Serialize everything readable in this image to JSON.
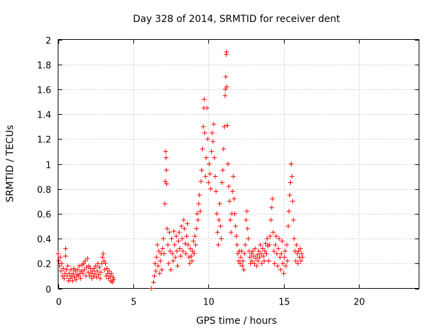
{
  "chart_data": {
    "type": "scatter",
    "title": "Day 328 of 2014, SRMTID for receiver dent",
    "xlabel": "GPS time / hours",
    "ylabel": "SRMTID / TECUs",
    "xlim": [
      0,
      24
    ],
    "ylim": [
      0,
      2
    ],
    "xticks": [
      0,
      5,
      10,
      15,
      20
    ],
    "yticks": [
      0,
      0.2,
      0.4,
      0.6,
      0.8,
      1,
      1.2,
      1.4,
      1.6,
      1.8,
      2
    ],
    "grid": true,
    "marker": "+",
    "color": "#ff0000",
    "series": [
      {
        "name": "SRMTID",
        "points": [
          [
            0.0,
            0.28
          ],
          [
            0.05,
            0.22
          ],
          [
            0.1,
            0.18
          ],
          [
            0.15,
            0.25
          ],
          [
            0.2,
            0.14
          ],
          [
            0.25,
            0.2
          ],
          [
            0.3,
            0.1
          ],
          [
            0.35,
            0.16
          ],
          [
            0.4,
            0.08
          ],
          [
            0.45,
            0.12
          ],
          [
            0.5,
            0.32
          ],
          [
            0.5,
            0.26
          ],
          [
            0.55,
            0.15
          ],
          [
            0.6,
            0.1
          ],
          [
            0.65,
            0.18
          ],
          [
            0.7,
            0.06
          ],
          [
            0.75,
            0.12
          ],
          [
            0.8,
            0.08
          ],
          [
            0.85,
            0.15
          ],
          [
            0.9,
            0.1
          ],
          [
            0.95,
            0.06
          ],
          [
            1.0,
            0.12
          ],
          [
            1.05,
            0.16
          ],
          [
            1.1,
            0.09
          ],
          [
            1.15,
            0.14
          ],
          [
            1.2,
            0.07
          ],
          [
            1.25,
            0.11
          ],
          [
            1.3,
            0.15
          ],
          [
            1.35,
            0.1
          ],
          [
            1.4,
            0.18
          ],
          [
            1.45,
            0.12
          ],
          [
            1.5,
            0.08
          ],
          [
            1.55,
            0.14
          ],
          [
            1.6,
            0.19
          ],
          [
            1.65,
            0.12
          ],
          [
            1.7,
            0.2
          ],
          [
            1.75,
            0.15
          ],
          [
            1.8,
            0.22
          ],
          [
            1.85,
            0.1
          ],
          [
            1.9,
            0.17
          ],
          [
            1.95,
            0.24
          ],
          [
            2.0,
            0.13
          ],
          [
            2.05,
            0.18
          ],
          [
            2.1,
            0.1
          ],
          [
            2.15,
            0.16
          ],
          [
            2.2,
            0.12
          ],
          [
            2.25,
            0.08
          ],
          [
            2.3,
            0.14
          ],
          [
            2.35,
            0.1
          ],
          [
            2.4,
            0.16
          ],
          [
            2.45,
            0.12
          ],
          [
            2.5,
            0.18
          ],
          [
            2.55,
            0.09
          ],
          [
            2.6,
            0.14
          ],
          [
            2.65,
            0.2
          ],
          [
            2.7,
            0.11
          ],
          [
            2.75,
            0.17
          ],
          [
            2.8,
            0.08
          ],
          [
            2.85,
            0.13
          ],
          [
            2.9,
            0.2
          ],
          [
            2.95,
            0.25
          ],
          [
            3.0,
            0.28
          ],
          [
            3.05,
            0.22
          ],
          [
            3.1,
            0.15
          ],
          [
            3.15,
            0.2
          ],
          [
            3.2,
            0.1
          ],
          [
            3.25,
            0.16
          ],
          [
            3.3,
            0.12
          ],
          [
            3.35,
            0.08
          ],
          [
            3.4,
            0.14
          ],
          [
            3.45,
            0.1
          ],
          [
            3.5,
            0.06
          ],
          [
            3.55,
            0.12
          ],
          [
            3.6,
            0.05
          ],
          [
            3.65,
            0.09
          ],
          [
            3.7,
            0.07
          ],
          [
            6.2,
            0.0
          ],
          [
            6.35,
            0.05
          ],
          [
            6.4,
            0.1
          ],
          [
            6.45,
            0.2
          ],
          [
            6.5,
            0.14
          ],
          [
            6.55,
            0.25
          ],
          [
            6.6,
            0.35
          ],
          [
            6.65,
            0.18
          ],
          [
            6.7,
            0.3
          ],
          [
            6.75,
            0.12
          ],
          [
            6.8,
            0.22
          ],
          [
            6.85,
            0.28
          ],
          [
            6.9,
            0.15
          ],
          [
            6.95,
            0.32
          ],
          [
            7.0,
            0.4
          ],
          [
            7.05,
            0.28
          ],
          [
            7.1,
            0.68
          ],
          [
            7.12,
            0.86
          ],
          [
            7.15,
            1.1
          ],
          [
            7.18,
            1.05
          ],
          [
            7.2,
            0.95
          ],
          [
            7.22,
            0.84
          ],
          [
            7.25,
            0.48
          ],
          [
            7.3,
            0.35
          ],
          [
            7.35,
            0.2
          ],
          [
            7.4,
            0.45
          ],
          [
            7.45,
            0.3
          ],
          [
            7.5,
            0.15
          ],
          [
            7.55,
            0.4
          ],
          [
            7.6,
            0.28
          ],
          [
            7.65,
            0.22
          ],
          [
            7.7,
            0.46
          ],
          [
            7.75,
            0.35
          ],
          [
            7.8,
            0.25
          ],
          [
            7.85,
            0.42
          ],
          [
            7.9,
            0.3
          ],
          [
            7.95,
            0.18
          ],
          [
            8.0,
            0.38
          ],
          [
            8.05,
            0.45
          ],
          [
            8.1,
            0.32
          ],
          [
            8.15,
            0.26
          ],
          [
            8.2,
            0.5
          ],
          [
            8.25,
            0.4
          ],
          [
            8.3,
            0.3
          ],
          [
            8.35,
            0.55
          ],
          [
            8.4,
            0.48
          ],
          [
            8.45,
            0.36
          ],
          [
            8.5,
            0.28
          ],
          [
            8.55,
            0.42
          ],
          [
            8.6,
            0.52
          ],
          [
            8.65,
            0.35
          ],
          [
            8.7,
            0.25
          ],
          [
            8.75,
            0.2
          ],
          [
            8.8,
            0.32
          ],
          [
            8.85,
            0.26
          ],
          [
            8.9,
            0.22
          ],
          [
            8.95,
            0.3
          ],
          [
            9.0,
            0.38
          ],
          [
            9.05,
            0.28
          ],
          [
            9.1,
            0.42
          ],
          [
            9.15,
            0.35
          ],
          [
            9.2,
            0.48
          ],
          [
            9.25,
            0.6
          ],
          [
            9.3,
            0.55
          ],
          [
            9.35,
            0.68
          ],
          [
            9.4,
            0.75
          ],
          [
            9.45,
            0.62
          ],
          [
            9.5,
            0.86
          ],
          [
            9.55,
            0.95
          ],
          [
            9.6,
            1.12
          ],
          [
            9.65,
            1.3
          ],
          [
            9.7,
            1.45
          ],
          [
            9.72,
            1.52
          ],
          [
            9.75,
            1.25
          ],
          [
            9.8,
            0.9
          ],
          [
            9.85,
            1.05
          ],
          [
            9.9,
            1.45
          ],
          [
            9.95,
            1.2
          ],
          [
            10.0,
            0.85
          ],
          [
            10.05,
            1.0
          ],
          [
            10.1,
            0.92
          ],
          [
            10.15,
            0.8
          ],
          [
            10.2,
            1.1
          ],
          [
            10.25,
            1.25
          ],
          [
            10.3,
            1.18
          ],
          [
            10.35,
            1.32
          ],
          [
            10.4,
            1.05
          ],
          [
            10.45,
            0.9
          ],
          [
            10.5,
            0.78
          ],
          [
            10.55,
            0.6
          ],
          [
            10.6,
            0.45
          ],
          [
            10.65,
            0.35
          ],
          [
            10.7,
            0.55
          ],
          [
            10.75,
            0.68
          ],
          [
            10.8,
            0.5
          ],
          [
            10.85,
            0.4
          ],
          [
            10.9,
            0.85
          ],
          [
            10.95,
            0.95
          ],
          [
            11.0,
            1.12
          ],
          [
            11.05,
            1.3
          ],
          [
            11.1,
            1.55
          ],
          [
            11.12,
            1.6
          ],
          [
            11.15,
            1.7
          ],
          [
            11.18,
            1.88
          ],
          [
            11.2,
            1.9
          ],
          [
            11.22,
            1.62
          ],
          [
            11.25,
            1.31
          ],
          [
            11.3,
            1.0
          ],
          [
            11.35,
            0.82
          ],
          [
            11.4,
            0.7
          ],
          [
            11.45,
            0.55
          ],
          [
            11.5,
            0.45
          ],
          [
            11.55,
            0.6
          ],
          [
            11.6,
            0.78
          ],
          [
            11.65,
            0.9
          ],
          [
            11.7,
            0.72
          ],
          [
            11.75,
            0.6
          ],
          [
            11.8,
            0.5
          ],
          [
            11.85,
            0.42
          ],
          [
            11.9,
            0.35
          ],
          [
            11.95,
            0.28
          ],
          [
            12.0,
            0.22
          ],
          [
            12.05,
            0.3
          ],
          [
            12.1,
            0.2
          ],
          [
            12.15,
            0.25
          ],
          [
            12.2,
            0.3
          ],
          [
            12.25,
            0.18
          ],
          [
            12.3,
            0.22
          ],
          [
            12.35,
            0.15
          ],
          [
            12.4,
            0.28
          ],
          [
            12.45,
            0.35
          ],
          [
            12.5,
            0.55
          ],
          [
            12.55,
            0.62
          ],
          [
            12.6,
            0.48
          ],
          [
            12.65,
            0.4
          ],
          [
            12.7,
            0.3
          ],
          [
            12.75,
            0.25
          ],
          [
            12.8,
            0.2
          ],
          [
            12.85,
            0.28
          ],
          [
            12.9,
            0.22
          ],
          [
            12.95,
            0.3
          ],
          [
            13.0,
            0.26
          ],
          [
            13.05,
            0.2
          ],
          [
            13.1,
            0.32
          ],
          [
            13.15,
            0.24
          ],
          [
            13.2,
            0.18
          ],
          [
            13.25,
            0.27
          ],
          [
            13.3,
            0.22
          ],
          [
            13.35,
            0.3
          ],
          [
            13.4,
            0.25
          ],
          [
            13.45,
            0.35
          ],
          [
            13.5,
            0.28
          ],
          [
            13.55,
            0.2
          ],
          [
            13.6,
            0.32
          ],
          [
            13.65,
            0.26
          ],
          [
            13.7,
            0.22
          ],
          [
            13.75,
            0.3
          ],
          [
            13.8,
            0.36
          ],
          [
            13.85,
            0.28
          ],
          [
            13.9,
            0.4
          ],
          [
            13.95,
            0.34
          ],
          [
            14.0,
            0.22
          ],
          [
            14.05,
            0.35
          ],
          [
            14.1,
            0.42
          ],
          [
            14.15,
            0.55
          ],
          [
            14.2,
            0.65
          ],
          [
            14.25,
            0.72
          ],
          [
            14.3,
            0.45
          ],
          [
            14.35,
            0.3
          ],
          [
            14.4,
            0.2
          ],
          [
            14.45,
            0.35
          ],
          [
            14.5,
            0.42
          ],
          [
            14.55,
            0.28
          ],
          [
            14.6,
            0.18
          ],
          [
            14.65,
            0.32
          ],
          [
            14.7,
            0.4
          ],
          [
            14.75,
            0.25
          ],
          [
            14.8,
            0.15
          ],
          [
            14.85,
            0.28
          ],
          [
            14.9,
            0.38
          ],
          [
            14.95,
            0.2
          ],
          [
            15.0,
            0.12
          ],
          [
            15.05,
            0.25
          ],
          [
            15.1,
            0.3
          ],
          [
            15.15,
            0.18
          ],
          [
            15.2,
            0.35
          ],
          [
            15.25,
            0.22
          ],
          [
            15.3,
            0.5
          ],
          [
            15.35,
            0.62
          ],
          [
            15.4,
            0.75
          ],
          [
            15.45,
            0.85
          ],
          [
            15.5,
            1.0
          ],
          [
            15.55,
            0.9
          ],
          [
            15.6,
            0.7
          ],
          [
            15.65,
            0.55
          ],
          [
            15.7,
            0.4
          ],
          [
            15.75,
            0.3
          ],
          [
            15.8,
            0.22
          ],
          [
            15.85,
            0.35
          ],
          [
            15.9,
            0.28
          ],
          [
            15.95,
            0.2
          ],
          [
            16.0,
            0.3
          ],
          [
            16.05,
            0.25
          ],
          [
            16.1,
            0.32
          ],
          [
            16.15,
            0.22
          ],
          [
            16.2,
            0.28
          ],
          [
            16.25,
            0.25
          ]
        ]
      }
    ]
  }
}
